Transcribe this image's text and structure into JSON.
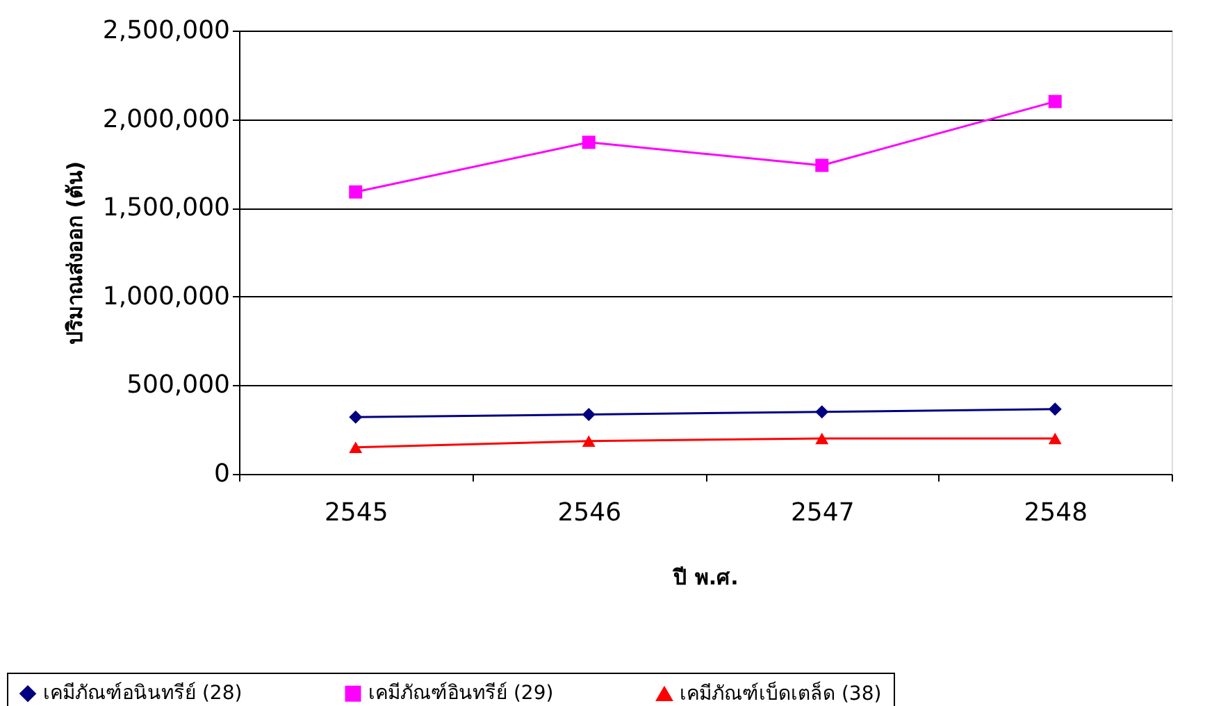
{
  "chart_data": {
    "type": "line",
    "xlabel": "ปี พ.ศ.",
    "ylabel": "ปริมาณส่งออก (ตัน)",
    "categories": [
      "2545",
      "2546",
      "2547",
      "2548"
    ],
    "ylim": [
      0,
      2500000
    ],
    "yticks": [
      0,
      {
        "value": 500000,
        "label": "500,000"
      },
      {
        "value": 1000000,
        "label": "1,000,000"
      },
      {
        "value": 1500000,
        "label": "1,500,000"
      },
      {
        "value": 2000000,
        "label": "2,000,000"
      },
      {
        "value": 2500000,
        "label": "2,500,000"
      }
    ],
    "grid": "y",
    "legend": "bottom",
    "line_style": "solid",
    "series": [
      {
        "name": "เคมีภัณฑ์อนินทรีย์ (28)",
        "color": "#000080",
        "marker": "diamond",
        "values": [
          320000,
          335000,
          350000,
          365000
        ]
      },
      {
        "name": "เคมีภัณฑ์อินทรีย์ (29)",
        "color": "#ff00ff",
        "marker": "square",
        "values": [
          1590000,
          1870000,
          1740000,
          2100000
        ]
      },
      {
        "name": "เคมีภัณฑ์เบ็ดเตล็ด (38)",
        "color": "#ff0000",
        "marker": "triangle",
        "values": [
          150000,
          185000,
          200000,
          200000
        ]
      }
    ]
  }
}
